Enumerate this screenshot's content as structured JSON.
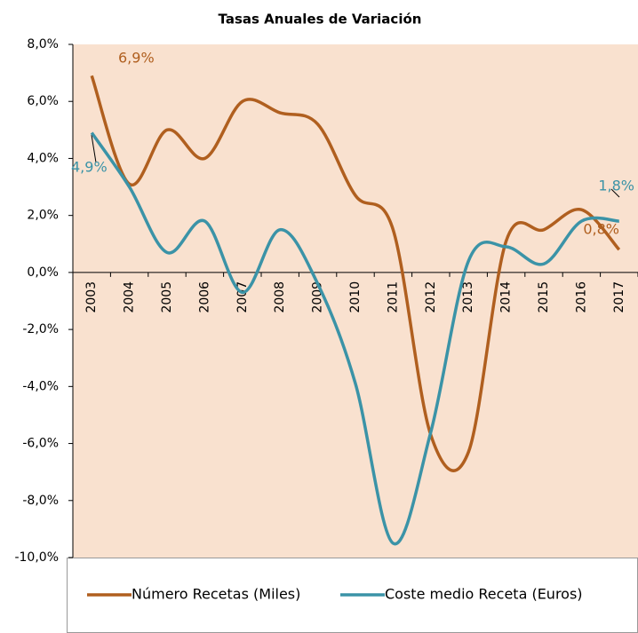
{
  "chart_data": {
    "type": "line",
    "title": "Tasas Anuales de Variación",
    "categories": [
      "2003",
      "2004",
      "2005",
      "2006",
      "2007",
      "2008",
      "2009",
      "2010",
      "2011",
      "2012",
      "2013",
      "2014",
      "2015",
      "2016",
      "2017"
    ],
    "series": [
      {
        "name": "Número Recetas (Miles)",
        "color": "#b05f1f",
        "values": [
          6.9,
          3.1,
          5.0,
          4.0,
          6.0,
          5.6,
          5.2,
          2.7,
          1.5,
          -5.7,
          -6.3,
          1.1,
          1.5,
          2.2,
          0.8
        ],
        "value_labels": [
          "6,9%",
          null,
          null,
          null,
          null,
          null,
          null,
          null,
          null,
          null,
          null,
          null,
          null,
          null,
          "0,8%"
        ]
      },
      {
        "name": "Coste medio Receta (Euros)",
        "color": "#3b93a7",
        "values": [
          4.9,
          3.0,
          0.7,
          1.8,
          -0.7,
          1.5,
          -0.4,
          -3.9,
          -9.5,
          -5.6,
          0.4,
          0.9,
          0.3,
          1.8,
          1.8
        ],
        "value_labels": [
          "4,9%",
          null,
          null,
          null,
          null,
          null,
          null,
          null,
          null,
          null,
          null,
          null,
          null,
          null,
          "1,8%"
        ]
      }
    ],
    "ylim": [
      -10,
      8
    ],
    "yticks": [
      {
        "value": -10,
        "label": "-10,0%"
      },
      {
        "value": -8,
        "label": "-8,0%"
      },
      {
        "value": -6,
        "label": "-6,0%"
      },
      {
        "value": -4,
        "label": "-4,0%"
      },
      {
        "value": -2,
        "label": "-2,0%"
      },
      {
        "value": 0,
        "label": "0,0%"
      },
      {
        "value": 2,
        "label": "2,0%"
      },
      {
        "value": 4,
        "label": "4,0%"
      },
      {
        "value": 6,
        "label": "6,0%"
      },
      {
        "value": 8,
        "label": "8,0%"
      }
    ]
  }
}
